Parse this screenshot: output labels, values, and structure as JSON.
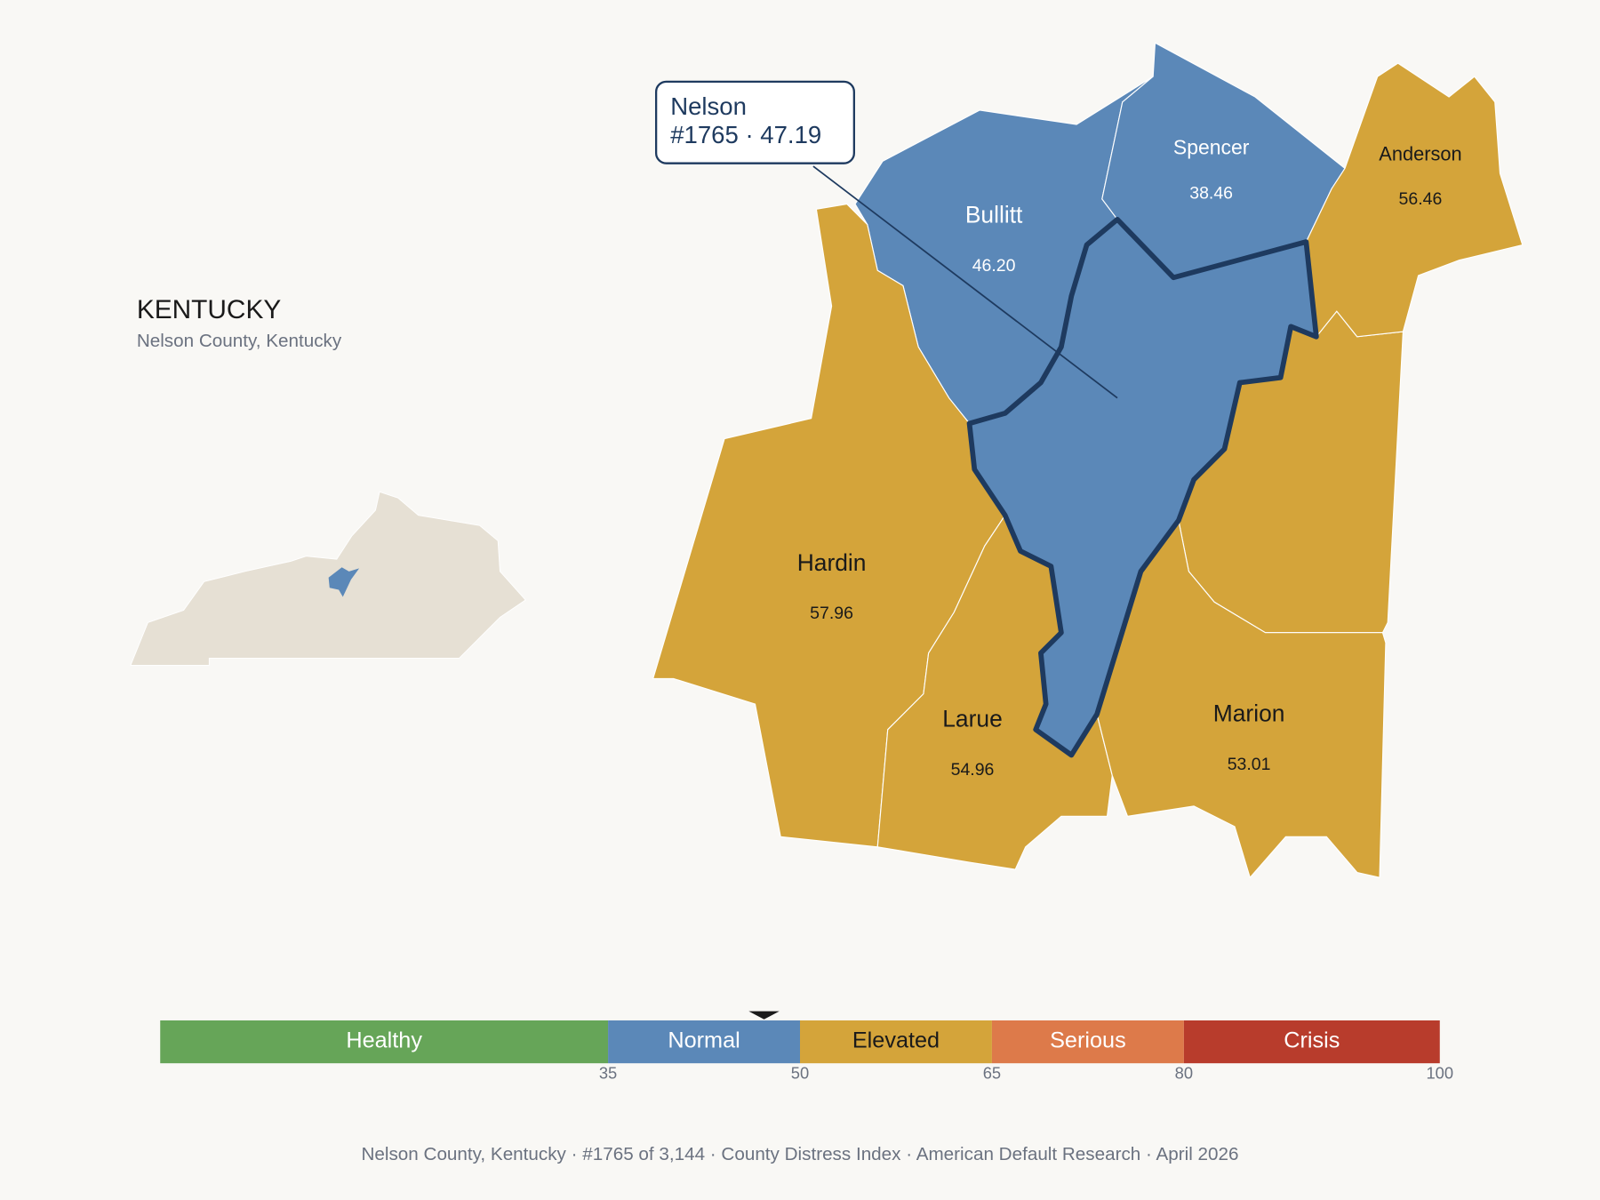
{
  "header": {
    "title": "KENTUCKY",
    "subtitle": "Nelson County, Kentucky"
  },
  "map": {
    "regions": [
      "Bullitt",
      "Spencer",
      "Anderson",
      "Hardin",
      "Larue",
      "Marion"
    ],
    "values": [
      46.2,
      38.46,
      56.46,
      57.96,
      54.96,
      53.01
    ],
    "value_labels": [
      "46.20",
      "38.46",
      "56.46",
      "57.96",
      "54.96",
      "53.01"
    ]
  },
  "selected": {
    "name": "Nelson",
    "label": "#1765 · 47.19",
    "value": 47.19
  },
  "legend": {
    "xlim": [
      0,
      100
    ],
    "ticks": [
      35,
      50,
      65,
      80,
      100
    ],
    "bands": [
      {
        "label": "Healthy",
        "color": "#66a558"
      },
      {
        "label": "Normal",
        "color": "#5b88b8"
      },
      {
        "label": "Elevated",
        "color": "#d4a43a"
      },
      {
        "label": "Serious",
        "color": "#dd7a4a"
      },
      {
        "label": "Crisis",
        "color": "#b83c2c"
      }
    ]
  },
  "footer": "Nelson County, Kentucky  ·  #1765 of 3,144  ·  County Distress Index  ·  American Default Research  ·  April 2026"
}
